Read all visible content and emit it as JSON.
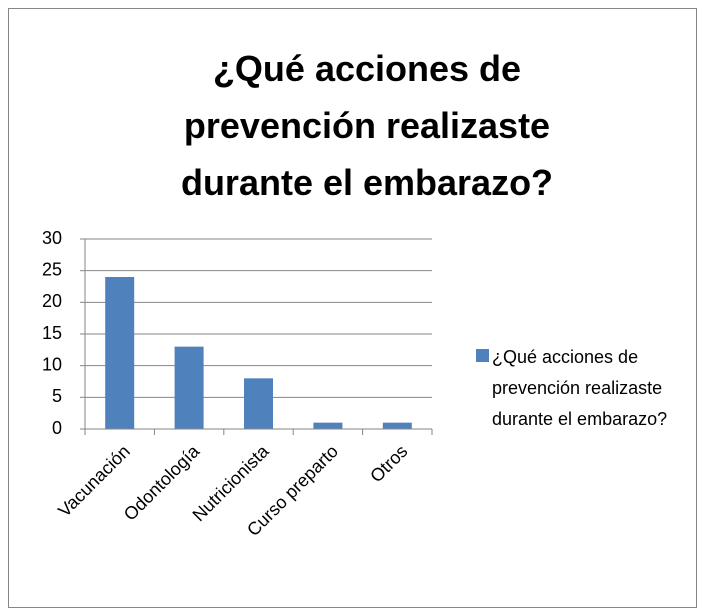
{
  "chart_data": {
    "type": "bar",
    "title": "¿Qué acciones de prevención realizaste durante el embarazo?",
    "categories": [
      "Vacunación",
      "Odontología",
      "Nutricionista",
      "Curso preparto",
      "Otros"
    ],
    "series": [
      {
        "name": "¿Qué acciones de prevención realizaste durante el embarazo?",
        "color": "#4f81bd",
        "values": [
          24,
          13,
          8,
          1,
          1
        ]
      }
    ],
    "ylim": [
      0,
      30
    ],
    "yticks": [
      0,
      5,
      10,
      15,
      20,
      25,
      30
    ],
    "grid": true,
    "legend": "right"
  }
}
